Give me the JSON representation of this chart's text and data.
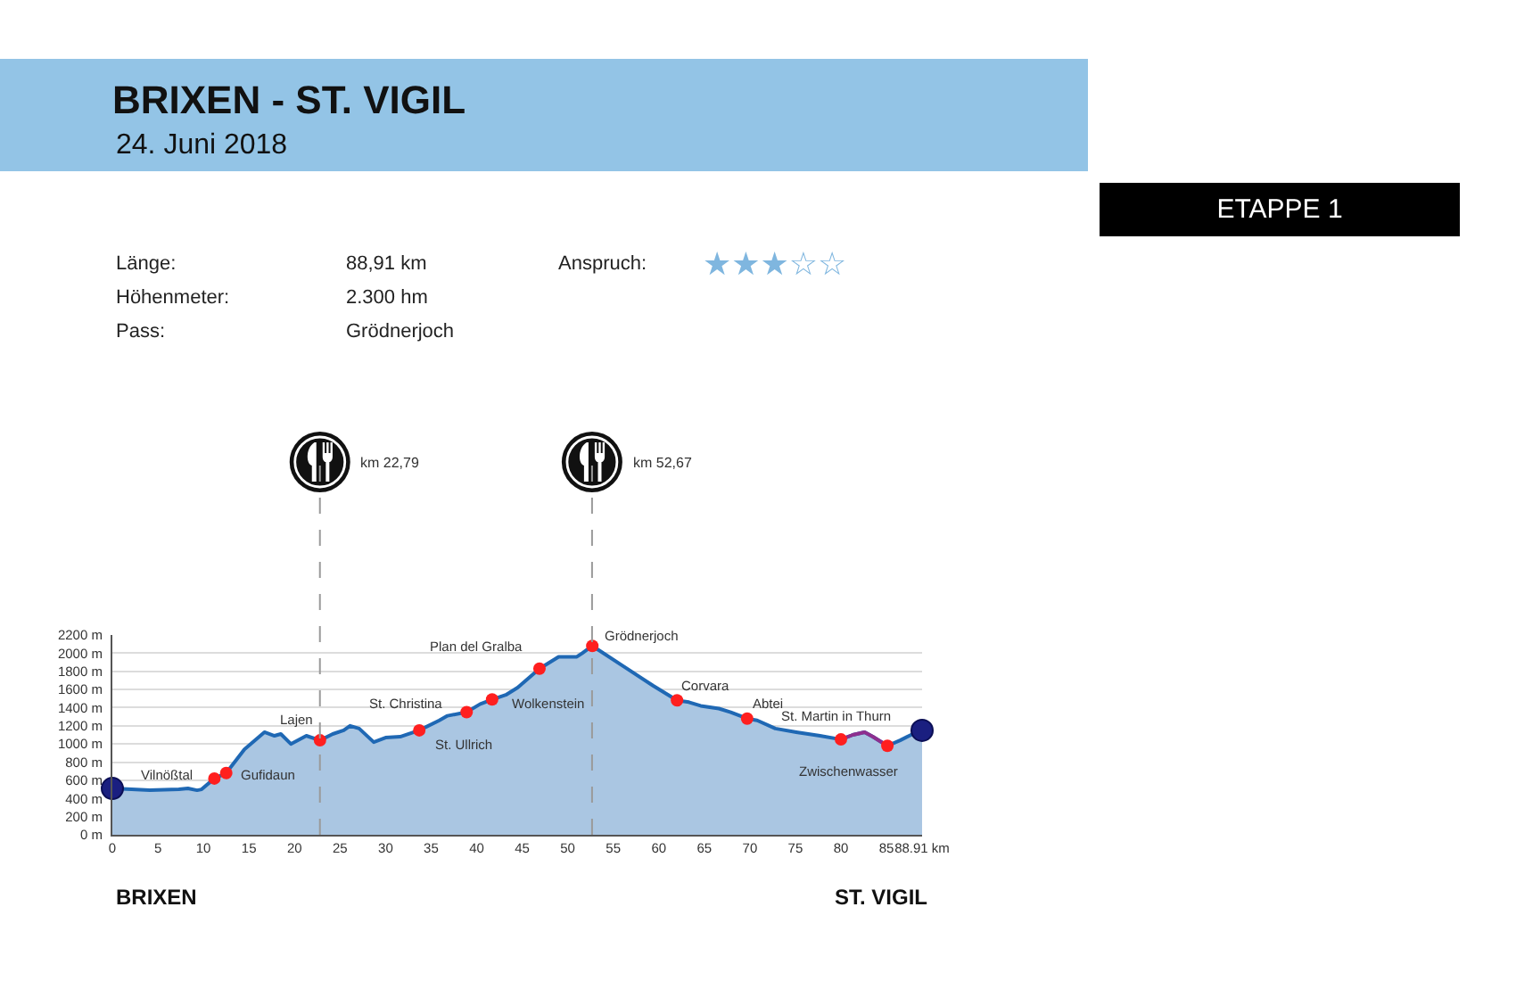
{
  "chart_data": {
    "type": "area",
    "title": "BRIXEN - ST. VIGIL",
    "subtitle": "24. Juni 2018",
    "series": [
      {
        "color": "#1f68b4",
        "x": [
          0,
          2.1,
          4.1,
          7.3,
          8.3,
          9.3,
          9.8,
          11.2,
          12.5,
          14.5,
          16.7,
          17.8,
          18.5,
          19.6,
          21.3,
          22.8,
          24.2,
          25.4,
          26.1,
          27.1,
          28.7,
          30.0,
          31.6,
          33.7,
          35.9,
          36.8,
          38.9,
          40.4,
          41.7,
          43.2,
          44.5,
          46.9,
          49.0,
          51.0,
          51.6,
          52.7,
          56.2,
          59.4,
          62.0,
          63.3,
          64.6,
          66.6,
          67.9,
          69.7,
          70.8,
          72.8,
          75.1,
          77.7,
          80.0,
          81.3,
          82.6,
          83.5,
          85.1,
          86.5,
          88.1,
          88.91
        ],
        "values": [
          510,
          500,
          490,
          500,
          510,
          490,
          500,
          620,
          680,
          940,
          1130,
          1090,
          1110,
          1000,
          1090,
          1040,
          1110,
          1150,
          1200,
          1170,
          1020,
          1070,
          1080,
          1150,
          1260,
          1310,
          1350,
          1440,
          1490,
          1540,
          1620,
          1830,
          1960,
          1960,
          2000,
          2080,
          1850,
          1640,
          1480,
          1460,
          1420,
          1390,
          1350,
          1280,
          1260,
          1170,
          1130,
          1090,
          1050,
          1100,
          1130,
          1080,
          980,
          1040,
          1120,
          1150
        ]
      },
      {
        "type": "line",
        "color": "#8e2f8e",
        "x": [
          80.0,
          81.3,
          82.6,
          83.5,
          85.1
        ],
        "values": [
          1050,
          1100,
          1130,
          1080,
          980
        ]
      },
      {
        "type": "scatter",
        "color": "#ff1f1f",
        "marker": "circle",
        "x": [
          11.2,
          12.5,
          22.8,
          33.7,
          38.9,
          41.7,
          46.9,
          52.7,
          62.0,
          69.7,
          80.0,
          85.1
        ],
        "values": [
          620,
          680,
          1040,
          1150,
          1350,
          1490,
          1830,
          2080,
          1480,
          1280,
          1050,
          980
        ]
      },
      {
        "type": "bubble",
        "color": "#1a1f80",
        "marker": "circle",
        "x": [
          0,
          88.91
        ],
        "values": [
          510,
          1150
        ],
        "sizes": [
          1,
          1
        ]
      }
    ],
    "xlim": [
      0,
      88.91
    ],
    "xticks": [
      0,
      5,
      10,
      15,
      20,
      25,
      30,
      35,
      40,
      45,
      50,
      55,
      60,
      65,
      70,
      75,
      80,
      85,
      {
        "value": 88.91,
        "label": "88.91 km"
      }
    ],
    "ylim": [
      0,
      2200
    ],
    "yticks": [
      {
        "value": 0,
        "label": "0 m"
      },
      {
        "value": 200,
        "label": "200 m"
      },
      {
        "value": 400,
        "label": "400 m"
      },
      {
        "value": 600,
        "label": "600 m"
      },
      {
        "value": 800,
        "label": "800 m"
      },
      {
        "value": 1000,
        "label": "1000 m"
      },
      {
        "value": 1200,
        "label": "1200 m"
      },
      {
        "value": 1400,
        "label": "1400 m"
      },
      {
        "value": 1600,
        "label": "1600 m"
      },
      {
        "value": 1800,
        "label": "1800 m"
      },
      {
        "value": 2000,
        "label": "2000 m"
      },
      {
        "value": 2200,
        "label": "2200 m"
      }
    ],
    "grid": "y",
    "ref_lines": [
      {
        "axis": "x",
        "value": 22.79,
        "label": "km 22,79",
        "color": "#9a9a9a",
        "line_style": "dashed"
      },
      {
        "axis": "x",
        "value": 52.67,
        "label": "km 52,67",
        "color": "#9a9a9a",
        "line_style": "dashed"
      }
    ],
    "annotations": [
      "ETAPPE 1",
      "Länge:",
      "88,91 km",
      "Höhenmeter:",
      "2.300 hm",
      "Pass:",
      "Grödnerjoch",
      "Anspruch:",
      "★★★☆☆",
      "BRIXEN",
      "ST. VIGIL",
      "Vilnößtal",
      "Gufidaun",
      "Lajen",
      "St. Christina",
      "St. Ullrich",
      "Plan del Gralba",
      "Wolkenstein",
      "Grödnerjoch",
      "Corvara",
      "Abtei",
      "St. Martin in Thurn",
      "Zwischenwasser"
    ]
  }
}
